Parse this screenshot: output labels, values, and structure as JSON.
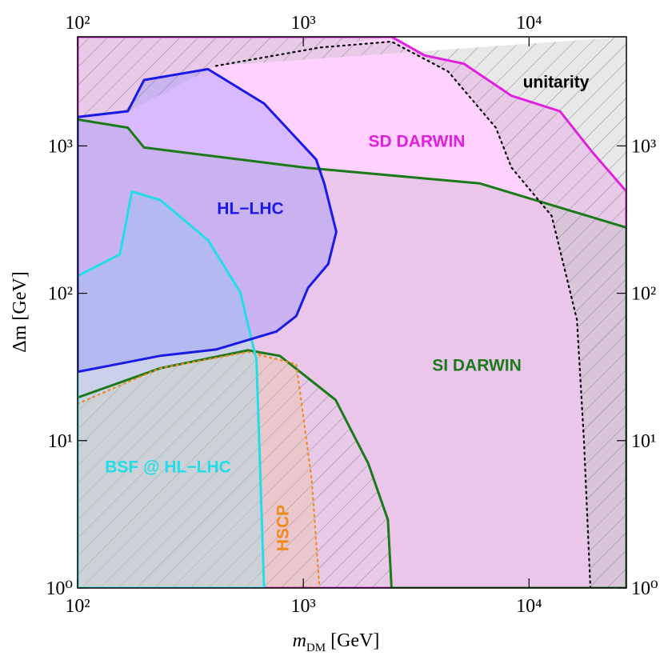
{
  "chart_data": {
    "type": "region",
    "xlabel": {
      "symbol": "m",
      "subscript": "DM",
      "unit": "[GeV]"
    },
    "ylabel": "Δm [GeV]",
    "xscale": "log",
    "yscale": "log",
    "xlim": [
      100,
      27000
    ],
    "ylim": [
      1,
      5500
    ],
    "xticks": [
      {
        "value": 100,
        "label": "10²"
      },
      {
        "value": 1000,
        "label": "10³"
      },
      {
        "value": 10000,
        "label": "10⁴"
      }
    ],
    "yticks": [
      {
        "value": 1,
        "label": "10⁰"
      },
      {
        "value": 10,
        "label": "10¹"
      },
      {
        "value": 100,
        "label": "10²"
      },
      {
        "value": 1000,
        "label": "10³"
      }
    ],
    "hatched": [
      {
        "x": [
          410,
          1190,
          2460,
          4380,
          7130,
          8360,
          12600,
          16300,
          17500,
          18700,
          27000,
          27000
        ],
        "y": [
          3490,
          4660,
          5100,
          3200,
          1330,
          713,
          335,
          66,
          10.1,
          1,
          1,
          5500
        ]
      },
      {
        "x": [
          100,
          232,
          569,
          787,
          1390,
          1940,
          2370,
          2460,
          100
        ],
        "y": [
          19.6,
          31,
          41,
          37.6,
          18.9,
          7.0,
          2.9,
          1,
          1
        ]
      },
      {
        "x": [
          100,
          2460,
          1190,
          410,
          167,
          100
        ],
        "y": [
          5500,
          5500,
          4660,
          3490,
          1720,
          1570
        ]
      }
    ],
    "series": [
      {
        "name": "SD DARWIN",
        "color": "#e020e0",
        "fill": "#ff66ff",
        "line": "solid",
        "x": [
          100,
          2460,
          3450,
          5150,
          8360,
          13700,
          19000,
          27000,
          27000,
          100
        ],
        "y": [
          5500,
          5500,
          4110,
          3610,
          2190,
          1720,
          915,
          490,
          1,
          1
        ]
      },
      {
        "name": "SI DARWIN",
        "color": "#1a7a1a",
        "fill": "#b8b0b8",
        "line": "solid",
        "x": [
          100,
          167,
          197,
          1010,
          6060,
          27000,
          27000,
          2460,
          2370,
          1940,
          1390,
          787,
          569,
          232,
          100
        ],
        "y": [
          1510,
          1330,
          975,
          713,
          556,
          279,
          1,
          1,
          2.9,
          7.0,
          18.9,
          37.6,
          41,
          31,
          19.6
        ]
      },
      {
        "name": "unitarity",
        "color": "#000000",
        "fill": "none",
        "line": "dotted",
        "x": [
          410,
          1190,
          2460,
          4380,
          7130,
          8360,
          12600,
          16300,
          17500,
          18700
        ],
        "y": [
          3490,
          4660,
          5100,
          3200,
          1330,
          713,
          335,
          66,
          10.1,
          1
        ]
      },
      {
        "name": "HSCP",
        "color": "#f08a1a",
        "fill": "#f0c090",
        "line": "dotted",
        "x": [
          100,
          232,
          569,
          930,
          1010,
          1090,
          1180,
          100
        ],
        "y": [
          17.8,
          31,
          40,
          33,
          13,
          5.4,
          1,
          1
        ]
      },
      {
        "name": "BSF @ HL−LHC",
        "color": "#22dde8",
        "fill": "#88e8f0",
        "line": "solid",
        "x": [
          100,
          154,
          174,
          232,
          378,
          525,
          620,
          670,
          100
        ],
        "y": [
          131,
          184,
          490,
          430,
          230,
          102,
          35.4,
          1,
          1
        ]
      },
      {
        "name": "HL−LHC",
        "color": "#1a1ae6",
        "fill": "#8080ff",
        "line": "solid",
        "x": [
          100,
          232,
          410,
          760,
          930,
          1050,
          1290,
          1400,
          1240,
          1140,
          670,
          378,
          197,
          167,
          100
        ],
        "y": [
          29.3,
          37.6,
          41.5,
          55,
          70,
          109,
          158,
          261,
          552,
          808,
          1940,
          3320,
          2800,
          1720,
          1570
        ]
      }
    ]
  }
}
